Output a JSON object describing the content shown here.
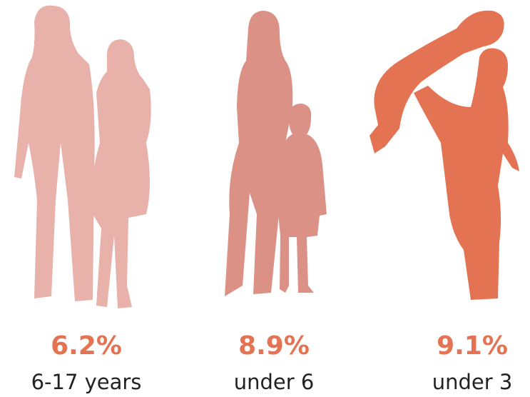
{
  "chart_data": {
    "type": "pictograph",
    "categories": [
      "6-17 years",
      "under 6",
      "under 3"
    ],
    "values": [
      6.2,
      8.9,
      9.1
    ],
    "value_labels": [
      "6.2%",
      "8.9%",
      "9.1%"
    ],
    "colors": [
      "#e8b1aa",
      "#dc9186",
      "#e37352"
    ],
    "value_label_color": "#e37352"
  }
}
